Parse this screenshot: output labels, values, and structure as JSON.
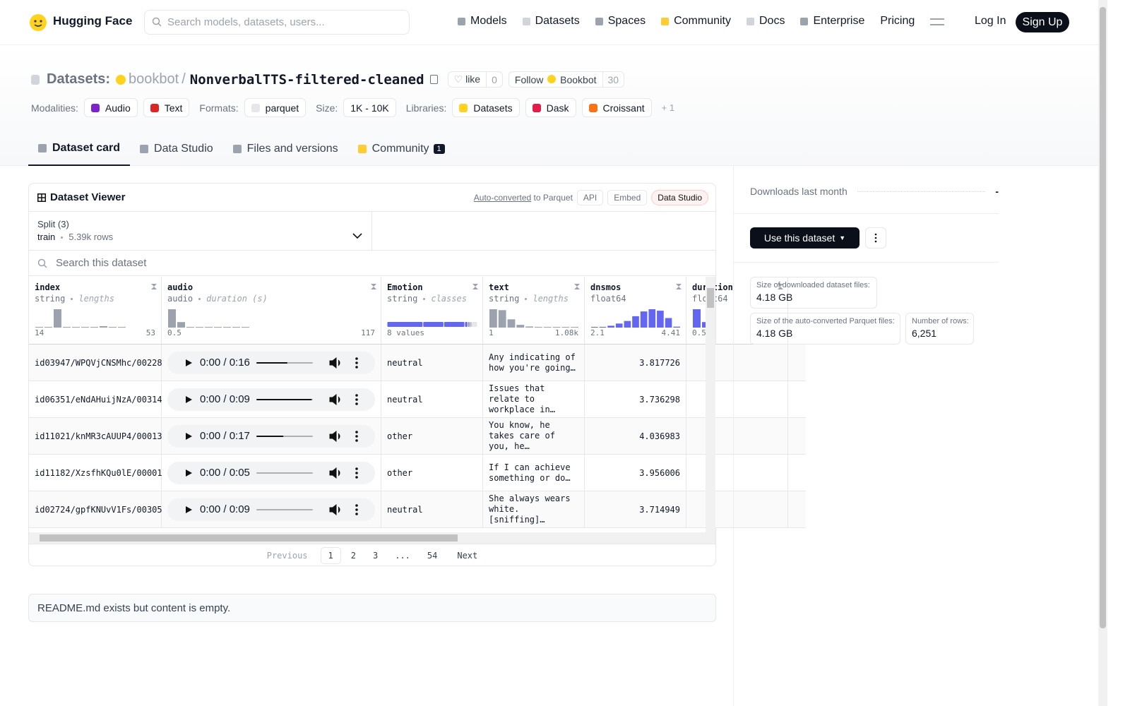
{
  "nav": {
    "brand": "Hugging Face",
    "search_placeholder": "Search models, datasets, users...",
    "links": [
      "Models",
      "Datasets",
      "Spaces",
      "Community",
      "Docs",
      "Enterprise",
      "Pricing"
    ],
    "login": "Log In",
    "signup": "Sign Up"
  },
  "header": {
    "section": "Datasets:",
    "owner": "bookbot",
    "separator": "/",
    "name": "NonverbalTTS-filtered-cleaned",
    "like": "like",
    "like_count": 0,
    "follow": "Follow",
    "follow_name": "Bookbot",
    "follow_count": 30,
    "tags": [
      {
        "label": "Modalities:",
        "items": [
          "Audio",
          "Text"
        ]
      },
      {
        "label": "Formats:",
        "items": [
          "parquet"
        ]
      },
      {
        "label": "Size:",
        "items": [
          "1K - 10K"
        ]
      },
      {
        "label": "Libraries:",
        "items": [
          "Datasets",
          "Dask",
          "Croissant"
        ]
      }
    ],
    "more": "+ 1"
  },
  "tabs": [
    {
      "label": "Dataset card"
    },
    {
      "label": "Data Studio"
    },
    {
      "label": "Files and versions"
    },
    {
      "label": "Community",
      "badge": 1
    }
  ],
  "viewer": {
    "title": "Dataset Viewer",
    "auto": "Auto-converted",
    "to_parquet": "to Parquet",
    "api": "API",
    "embed": "Embed",
    "studio": "Data Studio",
    "split_label": "Split (3)",
    "split": "train",
    "split_rows": "5.39k rows",
    "search_placeholder": "Search this dataset",
    "columns": [
      {
        "name": "index",
        "type": "string",
        "stat": "lengths",
        "min": "14",
        "max": "53",
        "hist": [
          2,
          2,
          100,
          0,
          2,
          2,
          2,
          8,
          3,
          2
        ]
      },
      {
        "name": "audio",
        "type": "audio",
        "stat": "duration (s)",
        "min": "0.5",
        "max": "117",
        "hist": [
          100,
          30,
          3,
          3,
          3,
          3,
          3,
          0,
          3
        ]
      },
      {
        "name": "Emotion",
        "type": "string",
        "stat": "classes",
        "min": "8 values",
        "classes": [
          48,
          28,
          28,
          4,
          2,
          2,
          1,
          8
        ]
      },
      {
        "name": "text",
        "type": "string",
        "stat": "lengths",
        "min": "1",
        "max": "1.08k",
        "hist": [
          100,
          95,
          45,
          15,
          6,
          4,
          4,
          3,
          3,
          3
        ]
      },
      {
        "name": "dnsmos",
        "type": "float64",
        "min": "2.1",
        "max": "4.41",
        "hist": [
          3,
          4,
          10,
          22,
          36,
          62,
          88,
          100,
          92,
          52,
          5
        ]
      },
      {
        "name": "duration",
        "type": "float64",
        "min": "0.5",
        "hist": [
          100,
          30
        ]
      }
    ],
    "rows": [
      [
        "id03947/WPQVjCNSMhc/00228",
        "0:00 / 0:16",
        "neutral",
        "Any indicating of how you're going…",
        3.817726
      ],
      [
        "id06351/eNdAHuijNzA/00314",
        "0:00 / 0:09",
        "neutral",
        "Issues that relate to workplace in…",
        3.736298
      ],
      [
        "id11021/knMR3cAUUP4/00013",
        "0:00 / 0:17",
        "other",
        "You know, he takes care of you, he…",
        4.036983
      ],
      [
        "id11182/XzsfhKQu0lE/00001",
        "0:00 / 0:05",
        "other",
        "If I can achieve something or do…",
        3.956006
      ],
      [
        "id02724/gpfKNUvV1Fs/00305",
        "0:00 / 0:09",
        "neutral",
        "She always wears white. [sniffing]…",
        3.714949
      ]
    ],
    "pagination": {
      "previous": "Previous",
      "pages": [
        "1",
        "2",
        "3",
        "...",
        "54"
      ],
      "next": "Next"
    }
  },
  "readme": "README.md exists but content is empty.",
  "sidebar": {
    "downloads_label": "Downloads last month",
    "downloads": "-",
    "use": "Use this dataset",
    "stats": [
      {
        "label": "Size of downloaded dataset files:",
        "value": "4.18 GB"
      },
      {
        "label": "Size of the auto-converted Parquet files:",
        "value": "4.18 GB"
      },
      {
        "label": "Number of rows:",
        "value": "6,251"
      }
    ]
  }
}
